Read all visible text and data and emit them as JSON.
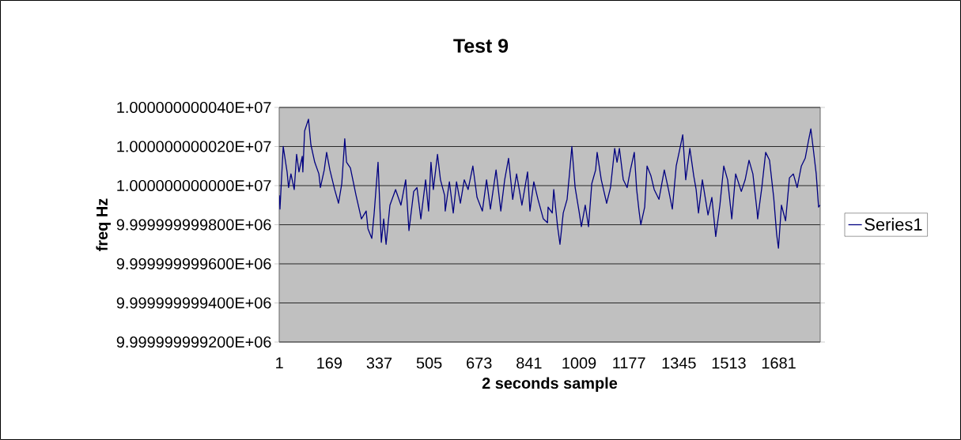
{
  "chart_data": {
    "type": "line",
    "title": "Test 9",
    "xlabel": "2 seconds sample",
    "ylabel": "freq Hz",
    "xlim": [
      0.5,
      1820.5
    ],
    "xticks": [
      1,
      169,
      337,
      505,
      673,
      841,
      1009,
      1177,
      1345,
      1513,
      1681
    ],
    "ylim": [
      9999999.9992,
      10000000.0004
    ],
    "yticks": [
      {
        "value": 9999999.9992,
        "label": "9.999999999200E+06"
      },
      {
        "value": 9999999.9994,
        "label": "9.999999999400E+06"
      },
      {
        "value": 9999999.9996,
        "label": "9.999999999600E+06"
      },
      {
        "value": 9999999.9998,
        "label": "9.999999999800E+06"
      },
      {
        "value": 10000000.0,
        "label": "1.000000000000E+07"
      },
      {
        "value": 10000000.0002,
        "label": "1.000000000020E+07"
      },
      {
        "value": 10000000.0004,
        "label": "1.000000000040E+07"
      }
    ],
    "grid": "y",
    "legend": "right",
    "x": [
      1,
      3,
      14,
      27,
      32,
      40,
      51,
      59,
      67,
      78,
      80,
      86,
      99,
      107,
      120,
      134,
      139,
      152,
      160,
      171,
      187,
      200,
      211,
      221,
      227,
      240,
      259,
      277,
      293,
      299,
      312,
      320,
      333,
      344,
      352,
      360,
      373,
      392,
      410,
      426,
      437,
      453,
      464,
      477,
      493,
      503,
      511,
      519,
      533,
      543,
      557,
      559,
      573,
      586,
      597,
      610,
      623,
      636,
      652,
      666,
      684,
      698,
      711,
      730,
      746,
      759,
      772,
      786,
      799,
      817,
      836,
      844,
      857,
      871,
      889,
      903,
      905,
      919,
      924,
      937,
      945,
      956,
      969,
      977,
      985,
      996,
      1009,
      1017,
      1030,
      1041,
      1052,
      1065,
      1070,
      1084,
      1102,
      1115,
      1129,
      1137,
      1145,
      1158,
      1171,
      1182,
      1195,
      1203,
      1211,
      1217,
      1230,
      1238,
      1251,
      1262,
      1278,
      1296,
      1310,
      1323,
      1336,
      1350,
      1358,
      1368,
      1382,
      1395,
      1403,
      1411,
      1424,
      1443,
      1456,
      1469,
      1483,
      1496,
      1509,
      1523,
      1536,
      1555,
      1568,
      1581,
      1594,
      1608,
      1610,
      1624,
      1637,
      1650,
      1664,
      1674,
      1680,
      1690,
      1704,
      1717,
      1730,
      1743,
      1757,
      1770,
      1781,
      1789,
      1797,
      1807,
      1815,
      1820
    ],
    "series": [
      {
        "name": "Series1",
        "color": "#000080",
        "values": [
          9999999.99995,
          9999999.99988,
          10000000.0002,
          10000000.00007,
          9999999.99999,
          10000000.00006,
          9999999.99998,
          10000000.00016,
          10000000.00007,
          10000000.00015,
          10000000.00007,
          10000000.00028,
          10000000.00034,
          10000000.00021,
          10000000.00012,
          10000000.00006,
          9999999.99999,
          10000000.00008,
          10000000.00017,
          10000000.00008,
          9999999.99998,
          9999999.99991,
          10000000.00001,
          10000000.00024,
          10000000.00012,
          10000000.00009,
          9999999.99995,
          9999999.99983,
          9999999.99987,
          9999999.99978,
          9999999.99973,
          9999999.99986,
          10000000.00012,
          9999999.99971,
          9999999.99983,
          9999999.9997,
          9999999.9999,
          9999999.99998,
          9999999.9999,
          10000000.00003,
          9999999.99977,
          9999999.99997,
          9999999.99999,
          9999999.99983,
          10000000.00003,
          9999999.99987,
          10000000.00012,
          9999999.99998,
          10000000.00016,
          10000000.00003,
          9999999.99995,
          9999999.99987,
          10000000.00002,
          9999999.99986,
          10000000.00002,
          9999999.99991,
          10000000.00003,
          9999999.99998,
          10000000.0001,
          9999999.99994,
          9999999.99987,
          10000000.00003,
          9999999.99988,
          10000000.00008,
          9999999.99987,
          10000000.00003,
          10000000.00014,
          9999999.99993,
          10000000.00006,
          9999999.9999,
          10000000.00007,
          9999999.99987,
          10000000.00002,
          9999999.99993,
          9999999.99983,
          9999999.99981,
          9999999.99989,
          9999999.99986,
          9999999.99998,
          9999999.99979,
          9999999.9997,
          9999999.99986,
          9999999.99993,
          10000000.00006,
          10000000.0002,
          9999999.99999,
          9999999.99987,
          9999999.99979,
          9999999.9999,
          9999999.99979,
          10000000.00001,
          10000000.00008,
          10000000.00017,
          10000000.00003,
          9999999.99991,
          9999999.99999,
          10000000.00019,
          10000000.00012,
          10000000.00019,
          10000000.00003,
          9999999.99999,
          10000000.00008,
          10000000.00017,
          9999999.99998,
          9999999.99987,
          9999999.9998,
          9999999.99989,
          10000000.0001,
          10000000.00005,
          9999999.99998,
          9999999.99993,
          10000000.00008,
          9999999.99998,
          9999999.99988,
          10000000.0001,
          10000000.0002,
          10000000.00026,
          10000000.00003,
          10000000.00019,
          10000000.00005,
          9999999.99998,
          9999999.99986,
          10000000.00003,
          9999999.99985,
          9999999.99994,
          9999999.99974,
          9999999.9999,
          10000000.0001,
          10000000.00003,
          9999999.99983,
          10000000.00006,
          9999999.99997,
          10000000.00003,
          10000000.00013,
          10000000.00006,
          9999999.99987,
          9999999.99983,
          9999999.99999,
          10000000.00017,
          10000000.00013,
          9999999.99994,
          9999999.99975,
          9999999.99968,
          9999999.9999,
          9999999.99982,
          10000000.00004,
          10000000.00006,
          9999999.99999,
          10000000.0001,
          10000000.00014,
          10000000.00023,
          10000000.00029,
          10000000.00019,
          10000000.00006,
          9999999.99989,
          9999999.9999
        ]
      }
    ]
  }
}
